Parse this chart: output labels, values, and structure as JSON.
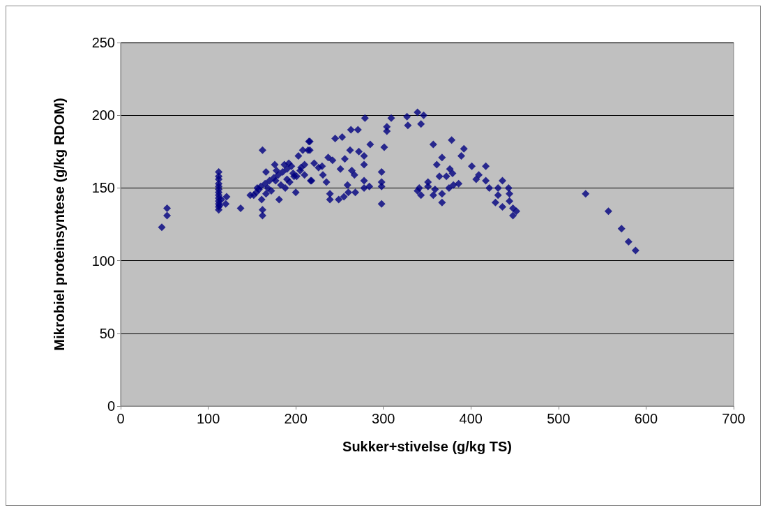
{
  "chart_data": {
    "type": "scatter",
    "xlabel": "Sukker+stivelse (g/kg TS)",
    "ylabel": "Mikrobiel proteinsyntese (g/kg RDOM)",
    "xlim": [
      0,
      700
    ],
    "xticks": [
      0,
      100,
      200,
      300,
      400,
      500,
      600,
      700
    ],
    "ylim": [
      0,
      250
    ],
    "yticks": [
      0,
      50,
      100,
      150,
      200,
      250
    ],
    "grid": "y",
    "marker": "diamond",
    "series": [
      {
        "color": "#000080",
        "x": [
          47,
          53,
          53,
          112,
          112,
          112,
          112,
          112,
          112,
          112,
          112,
          112,
          112,
          112,
          112,
          112,
          113,
          115,
          121,
          120,
          137,
          162,
          162,
          162,
          148,
          156,
          161,
          166,
          176,
          181,
          177,
          187,
          192,
          190,
          200,
          198,
          206,
          203,
          208,
          214,
          215,
          210,
          217,
          152,
          155,
          158,
          160,
          165,
          170,
          175,
          180,
          185,
          190,
          195,
          172,
          183,
          188,
          193,
          197,
          178,
          168,
          166,
          201,
          205,
          210,
          216,
          216,
          221,
          226,
          230,
          231,
          218,
          235,
          237,
          242,
          245,
          253,
          256,
          251,
          239,
          239,
          249,
          255,
          263,
          271,
          262,
          272,
          278,
          278,
          279,
          285,
          264,
          267,
          260,
          268,
          259,
          278,
          284,
          278,
          298,
          298,
          298,
          298,
          301,
          304,
          304,
          309,
          327,
          328,
          339,
          343,
          346,
          357,
          361,
          367,
          378,
          392,
          389,
          401,
          417,
          376,
          379,
          372,
          364,
          351,
          409,
          406,
          417,
          386,
          380,
          375,
          341,
          339,
          343,
          359,
          367,
          367,
          351,
          357,
          421,
          436,
          431,
          443,
          444,
          431,
          428,
          436,
          444,
          448,
          452,
          448,
          531,
          557,
          572,
          580,
          588
        ],
        "values": [
          123,
          131,
          136,
          135,
          137,
          139,
          141,
          143,
          145,
          147,
          149,
          151,
          153,
          156,
          158,
          161,
          138,
          142,
          144,
          139,
          136,
          176,
          135,
          131,
          145,
          150,
          142,
          161,
          166,
          142,
          155,
          166,
          167,
          156,
          147,
          158,
          164,
          172,
          176,
          176,
          182,
          159,
          155,
          145,
          147,
          149,
          151,
          153,
          155,
          157,
          159,
          161,
          163,
          165,
          148,
          152,
          150,
          154,
          160,
          162,
          150,
          146,
          158,
          162,
          166,
          182,
          176,
          167,
          164,
          165,
          159,
          155,
          154,
          171,
          169,
          184,
          185,
          170,
          163,
          146,
          142,
          142,
          144,
          190,
          190,
          176,
          175,
          172,
          166,
          198,
          180,
          162,
          159,
          147,
          147,
          152,
          155,
          151,
          150,
          161,
          154,
          151,
          139,
          178,
          192,
          189,
          198,
          199,
          193,
          202,
          194,
          200,
          180,
          166,
          171,
          183,
          177,
          172,
          165,
          165,
          163,
          160,
          158,
          158,
          154,
          159,
          156,
          155,
          153,
          152,
          150,
          150,
          148,
          145,
          149,
          146,
          140,
          151,
          145,
          150,
          155,
          150,
          150,
          146,
          145,
          140,
          137,
          141,
          136,
          134,
          131,
          146,
          134,
          122,
          113,
          107
        ]
      }
    ]
  }
}
